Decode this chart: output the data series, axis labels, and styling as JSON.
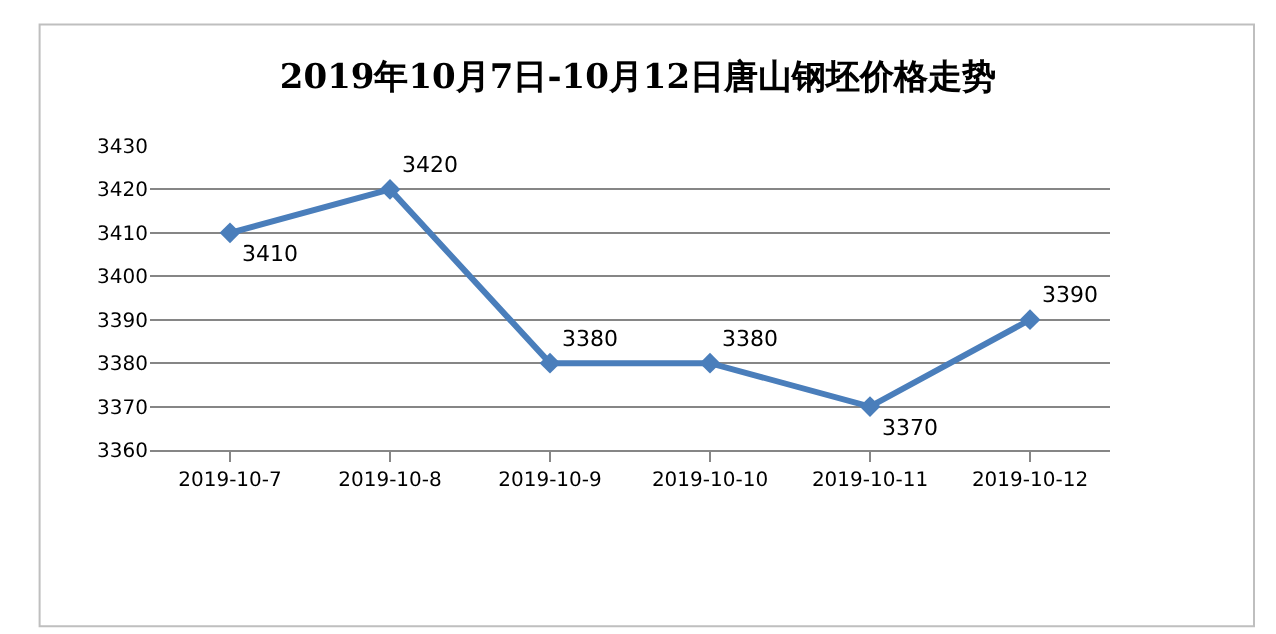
{
  "chart_data": {
    "type": "line",
    "title": "2019年10月7日-10月12日唐山钢坯价格走势",
    "categories": [
      "2019-10-7",
      "2019-10-8",
      "2019-10-9",
      "2019-10-10",
      "2019-10-11",
      "2019-10-12"
    ],
    "series": [
      {
        "color": "#4a7ebb",
        "values": [
          3410,
          3420,
          3380,
          3380,
          3370,
          3390
        ]
      }
    ],
    "ylim": [
      3360,
      3430
    ],
    "yticks": [
      3360,
      3370,
      3380,
      3390,
      3400,
      3410,
      3420,
      3430
    ],
    "grid": "y",
    "marker": "diamond",
    "line_style": "solid",
    "data_labels": true,
    "legend": false
  }
}
